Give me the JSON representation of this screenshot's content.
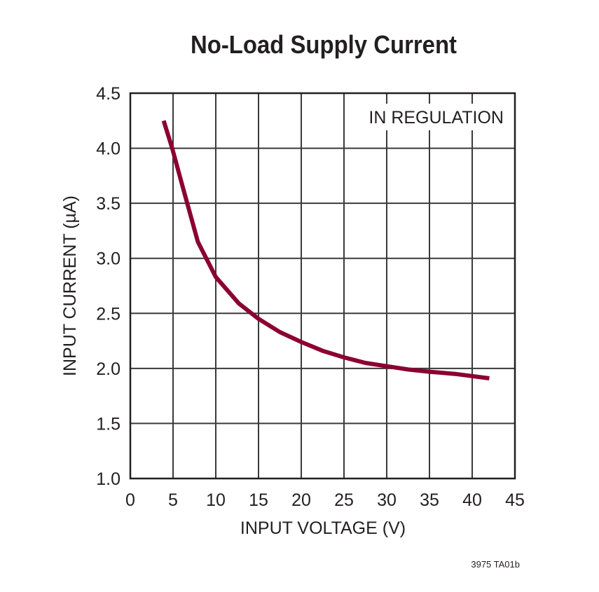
{
  "chart_data": {
    "type": "line",
    "title": "No-Load Supply Current",
    "xlabel": "INPUT VOLTAGE (V)",
    "ylabel": "INPUT CURRENT (µA)",
    "xlim": [
      0,
      45
    ],
    "ylim": [
      1.0,
      4.5
    ],
    "xticks": [
      "0",
      "5",
      "10",
      "15",
      "20",
      "25",
      "30",
      "35",
      "40",
      "45"
    ],
    "yticks": [
      "1.0",
      "1.5",
      "2.0",
      "2.5",
      "3.0",
      "3.5",
      "4.0",
      "4.5"
    ],
    "grid": true,
    "annotation": "IN REGULATION",
    "footnote": "3975 TA01b",
    "line_color": "#8b0031",
    "series": [
      {
        "x": [
          3.9,
          4.9,
          6.2,
          7.9,
          10,
          12.7,
          15,
          17.5,
          20,
          22.5,
          25,
          27.5,
          30,
          32.5,
          35,
          38,
          42
        ],
        "y": [
          4.25,
          4.0,
          3.63,
          3.15,
          2.83,
          2.59,
          2.45,
          2.33,
          2.24,
          2.16,
          2.1,
          2.05,
          2.02,
          1.99,
          1.97,
          1.95,
          1.91
        ]
      }
    ]
  }
}
